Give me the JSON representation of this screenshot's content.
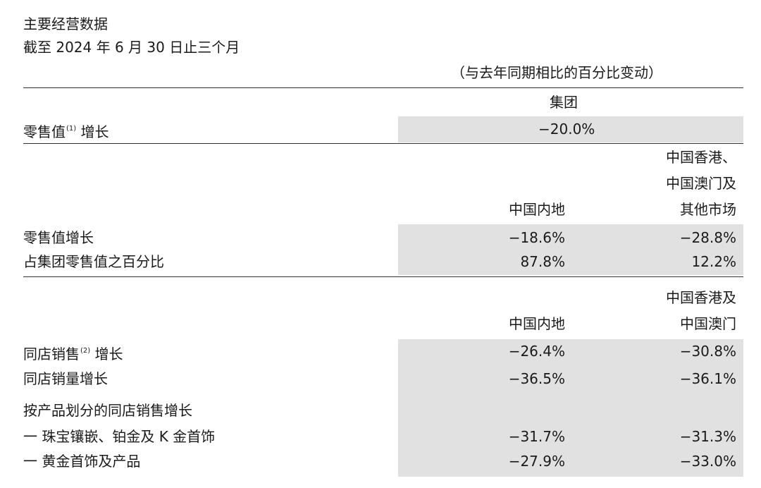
{
  "header": {
    "title": "主要经营数据",
    "period": "截至 2024 年 6 月 30 日止三个月",
    "note": "（与去年同期相比的百分比变动）"
  },
  "group": {
    "column": "集团",
    "row_label": "零售值",
    "row_sup": "(1)",
    "row_label_suffix": " 增长",
    "value": "−20.0%"
  },
  "section2": {
    "col1": "中国内地",
    "col2_line1": "中国香港、",
    "col2_line2": "中国澳门及",
    "col2_line3": "其他市场",
    "rows": [
      {
        "label": "零售值增长",
        "v1": "−18.6%",
        "v2": "−28.8%"
      },
      {
        "label": "占集团零售值之百分比",
        "v1": "87.8%",
        "v2": "12.2%"
      }
    ]
  },
  "section3": {
    "col1": "中国内地",
    "col2_line1": "中国香港及",
    "col2_line2": "中国澳门",
    "row1": {
      "label": "同店销售",
      "sup": "(2)",
      "suffix": " 增长",
      "v1": "−26.4%",
      "v2": "−30.8%"
    },
    "row2": {
      "label": "同店销量增长",
      "v1": "−36.5%",
      "v2": "−36.1%"
    },
    "subheading": "按产品划分的同店销售增长",
    "row3": {
      "label": "一 珠宝镶嵌、铂金及 K 金首饰",
      "v1": "−31.7%",
      "v2": "−31.3%"
    },
    "row4": {
      "label": "一 黄金首饰及产品",
      "v1": "−27.9%",
      "v2": "−33.0%"
    }
  }
}
